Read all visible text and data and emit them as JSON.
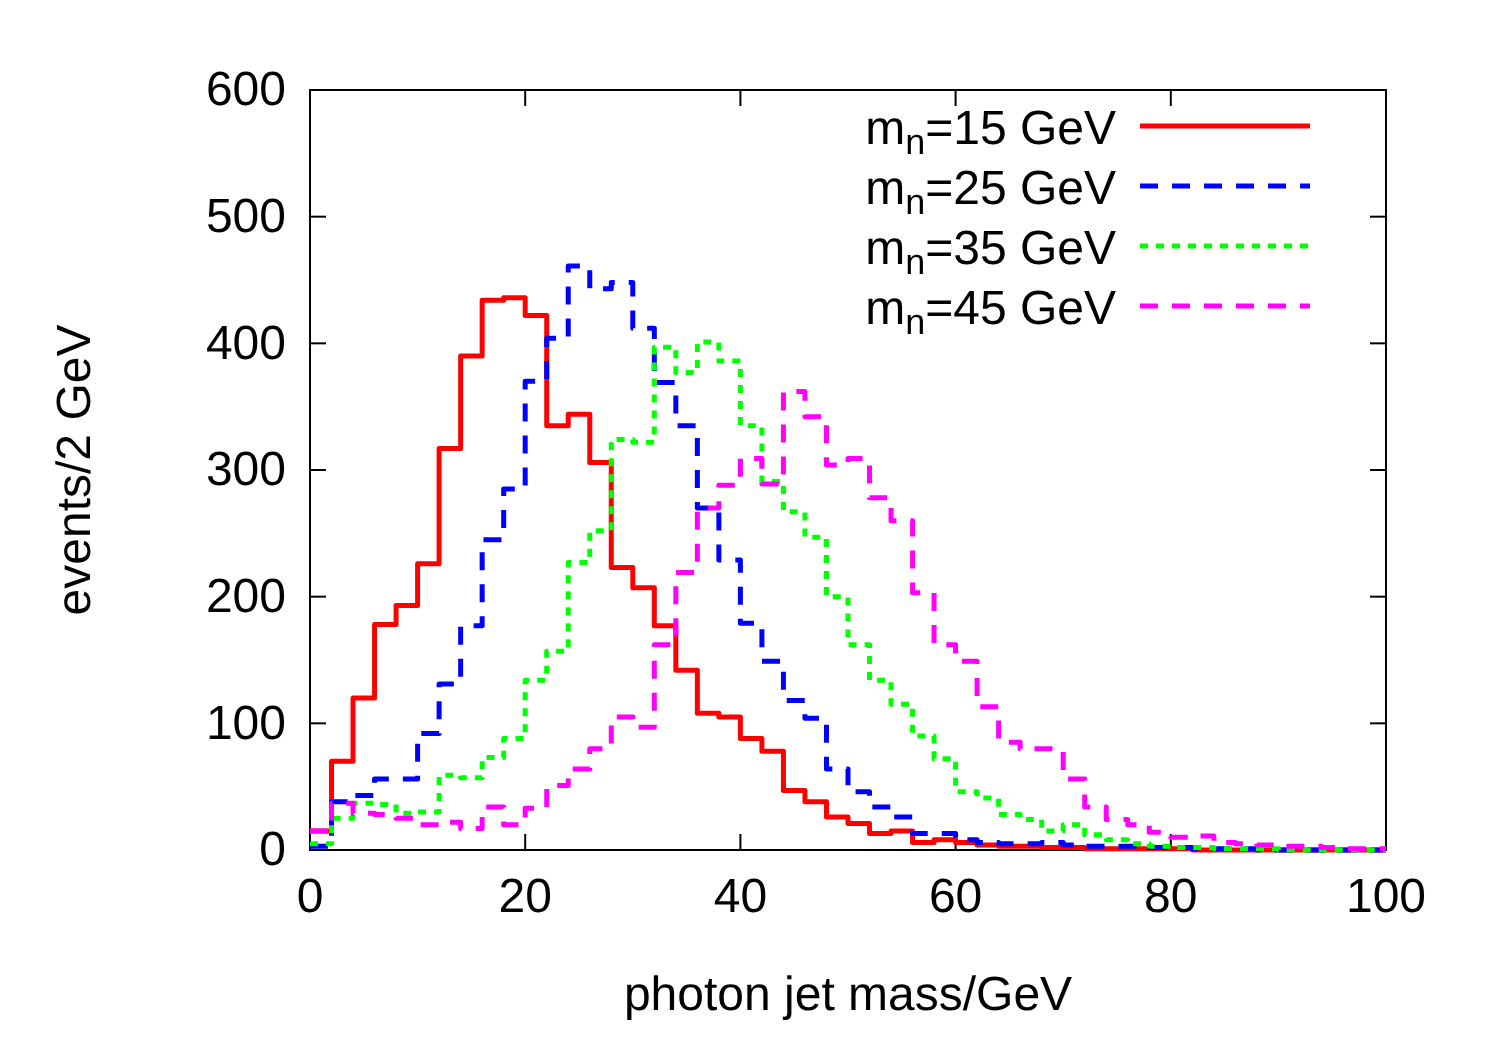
{
  "chart_data": {
    "type": "histogram",
    "xlabel": "photon jet mass/GeV",
    "ylabel": "events/2 GeV",
    "bins": [
      0,
      2,
      4,
      6,
      8,
      10,
      12,
      14,
      16,
      18,
      20,
      22,
      24,
      26,
      28,
      30,
      32,
      34,
      36,
      38,
      40,
      42,
      44,
      46,
      48,
      50,
      52,
      54,
      56,
      58,
      60,
      62,
      64,
      66,
      68,
      70,
      72,
      74,
      76,
      78,
      80,
      82,
      84,
      86,
      88,
      90,
      92,
      94,
      96,
      98,
      100
    ],
    "series": [
      {
        "name": "m$_{n}$=15 GeV",
        "color": "#ff0000",
        "line_style": "solid",
        "values": [
          15,
          70,
          120,
          178,
          193,
          226,
          317,
          390,
          434,
          436,
          422,
          335,
          344,
          306,
          223,
          207,
          177,
          142,
          108,
          105,
          88,
          78,
          47,
          38,
          26,
          21,
          13,
          15,
          6,
          8,
          6,
          4,
          3,
          3,
          2,
          2,
          1,
          1,
          1,
          1,
          1,
          0,
          0,
          0,
          0,
          0,
          0,
          0,
          0,
          0
        ]
      },
      {
        "name": "m$_{n}$=25 GeV",
        "color": "#0000ff",
        "line_style": "dashed",
        "values": [
          3,
          38,
          43,
          56,
          56,
          92,
          131,
          177,
          245,
          285,
          370,
          404,
          461,
          443,
          448,
          412,
          369,
          335,
          270,
          229,
          179,
          149,
          118,
          104,
          64,
          46,
          34,
          26,
          13,
          13,
          8,
          6,
          5,
          5,
          6,
          4,
          3,
          3,
          3,
          2,
          2,
          1,
          1,
          1,
          0,
          0,
          0,
          0,
          0,
          0
        ]
      },
      {
        "name": "m$_{n}$=35 GeV",
        "color": "#00ff00",
        "line_style": "dotted",
        "values": [
          5,
          25,
          37,
          36,
          29,
          30,
          59,
          57,
          73,
          88,
          134,
          157,
          227,
          252,
          324,
          322,
          397,
          377,
          401,
          386,
          335,
          291,
          267,
          247,
          200,
          162,
          134,
          115,
          90,
          72,
          46,
          41,
          28,
          24,
          15,
          20,
          12,
          8,
          5,
          3,
          2,
          2,
          1,
          1,
          1,
          0,
          0,
          0,
          0,
          0
        ]
      },
      {
        "name": "m$_{n}$=45 GeV",
        "color": "#ff00ff",
        "line_style": "dashed",
        "values": [
          15,
          37,
          29,
          28,
          25,
          20,
          22,
          17,
          34,
          20,
          33,
          51,
          64,
          80,
          105,
          97,
          162,
          219,
          270,
          288,
          309,
          289,
          362,
          342,
          304,
          309,
          278,
          260,
          203,
          162,
          149,
          113,
          85,
          80,
          80,
          56,
          34,
          24,
          20,
          14,
          10,
          11,
          6,
          5,
          4,
          3,
          3,
          2,
          1,
          1
        ]
      }
    ],
    "xlim": [
      0,
      100
    ],
    "xticks": [
      0,
      20,
      40,
      60,
      80,
      100
    ],
    "ylim": [
      0,
      600
    ],
    "yticks": [
      0,
      100,
      200,
      300,
      400,
      500,
      600
    ],
    "grid": false,
    "legend": "top right"
  }
}
